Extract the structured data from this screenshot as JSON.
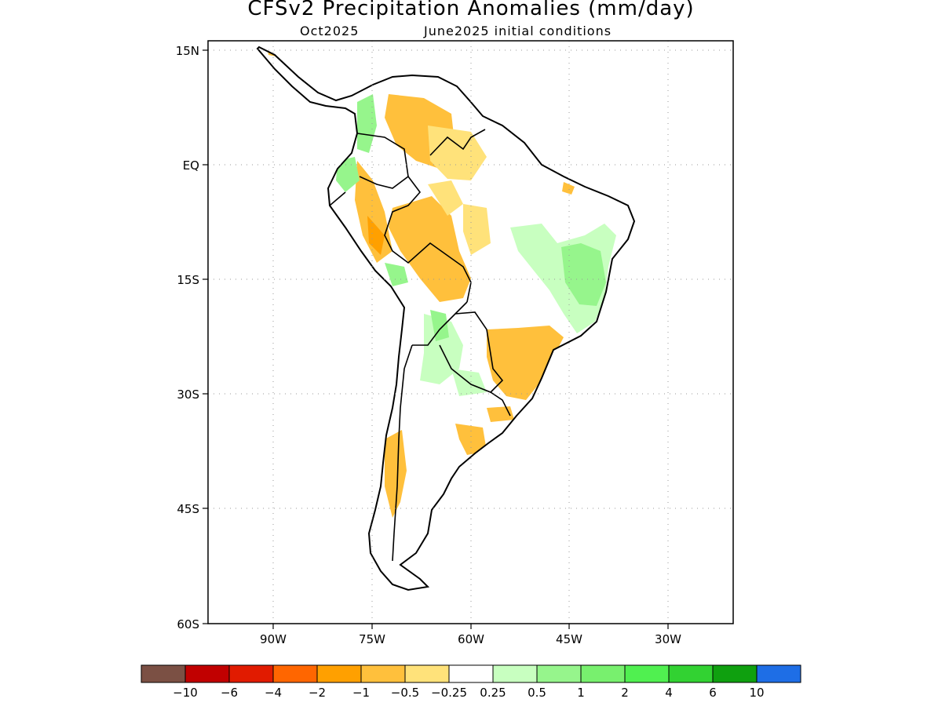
{
  "title": "CFSv2 Precipitation Anomalies (mm/day)",
  "subtitle_left": "Oct2025",
  "subtitle_right": "June2025 initial conditions",
  "lat_labels": [
    "15N",
    "EQ",
    "15S",
    "30S",
    "45S",
    "60S"
  ],
  "lon_labels": [
    "90W",
    "75W",
    "60W",
    "45W",
    "30W"
  ],
  "colorbar": {
    "colors": [
      "#7b5044",
      "#c10000",
      "#e11b00",
      "#ff6600",
      "#ffa000",
      "#ffc03c",
      "#ffe27a",
      "#ffffff",
      "#c8ffc0",
      "#96f58c",
      "#78f06e",
      "#50f050",
      "#32d232",
      "#0fa00f",
      "#1e6ee6"
    ],
    "labels": [
      "-10",
      "-6",
      "-4",
      "-2",
      "-1",
      "-0.5",
      "-0.25",
      "0.25",
      "0.5",
      "1",
      "2",
      "4",
      "6",
      "10"
    ]
  }
}
